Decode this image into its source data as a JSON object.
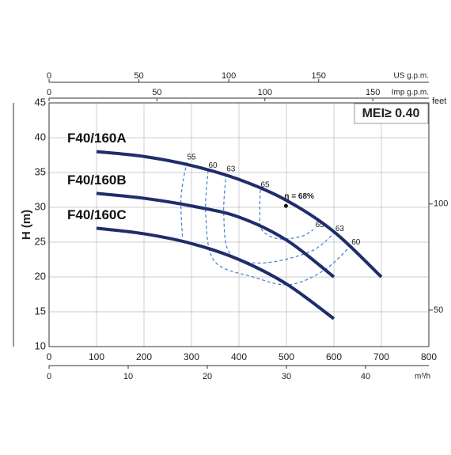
{
  "chart_data": {
    "type": "line",
    "y_label": "H (m)",
    "badge": "MEI≥ 0.40",
    "xlim": [
      0,
      800
    ],
    "xticks": [
      0,
      100,
      200,
      300,
      400,
      500,
      600,
      700,
      800
    ],
    "ylim": [
      10,
      45
    ],
    "yticks": [
      10,
      15,
      20,
      25,
      30,
      35,
      40,
      45
    ],
    "grid": true,
    "top_axes": [
      {
        "label": "US g.p.m.",
        "ticks": [
          0,
          {
            "value": 189.27,
            "label": "50"
          },
          {
            "value": 378.54,
            "label": "100"
          },
          {
            "value": 567.81,
            "label": "150"
          }
        ]
      },
      {
        "label": "Imp g.p.m.",
        "ticks": [
          0,
          {
            "value": 227.3,
            "label": "50"
          },
          {
            "value": 454.61,
            "label": "100"
          },
          {
            "value": 681.91,
            "label": "150"
          }
        ]
      }
    ],
    "bottom_axis2": {
      "label": "m³/h",
      "ticks": [
        0,
        {
          "value": 166.67,
          "label": "10"
        },
        {
          "value": 333.33,
          "label": "20"
        },
        {
          "value": 500,
          "label": "30"
        },
        {
          "value": 666.67,
          "label": "40"
        }
      ]
    },
    "y2_label": "feet",
    "y2ticks": [
      {
        "value": 15.24,
        "label": "50"
      },
      {
        "value": 30.48,
        "label": "100"
      }
    ],
    "series": [
      {
        "name": "F40/160A",
        "color": "#1f2d6b",
        "x": [
          100,
          200,
          300,
          400,
          500,
          600,
          700
        ],
        "values": [
          38,
          37.3,
          36,
          34,
          31,
          26.5,
          20
        ]
      },
      {
        "name": "F40/160B",
        "color": "#1f2d6b",
        "x": [
          100,
          200,
          300,
          400,
          500,
          600
        ],
        "values": [
          32,
          31.3,
          30.2,
          28.6,
          25.3,
          20
        ]
      },
      {
        "name": "F40/160C",
        "color": "#1f2d6b",
        "x": [
          100,
          200,
          300,
          400,
          500,
          600
        ],
        "values": [
          27,
          26.2,
          24.8,
          22.5,
          19,
          14
        ]
      }
    ],
    "efficiency": {
      "color": "#3b7fd0",
      "curves": [
        {
          "label": "55",
          "x": [
            290,
            278,
            281
          ],
          "values": [
            36.5,
            31.4,
            25.7
          ]
        },
        {
          "label": "60",
          "x": [
            335,
            330,
            348,
            430,
            507,
            580,
            633
          ],
          "values": [
            35.3,
            29,
            22.3,
            20,
            18.9,
            21,
            24.3
          ]
        },
        {
          "label": "63",
          "x": [
            373,
            368,
            381,
            448,
            549,
            599
          ],
          "values": [
            34.8,
            29,
            23.4,
            22,
            23.6,
            26.2
          ]
        },
        {
          "label": "65",
          "x": [
            445,
            444,
            448,
            482,
            530,
            557
          ],
          "values": [
            32.5,
            29.5,
            26.8,
            25.5,
            25.8,
            26.8
          ]
        }
      ],
      "peak": {
        "label": "η = 68%",
        "x": 499,
        "value": 30.2
      }
    }
  }
}
